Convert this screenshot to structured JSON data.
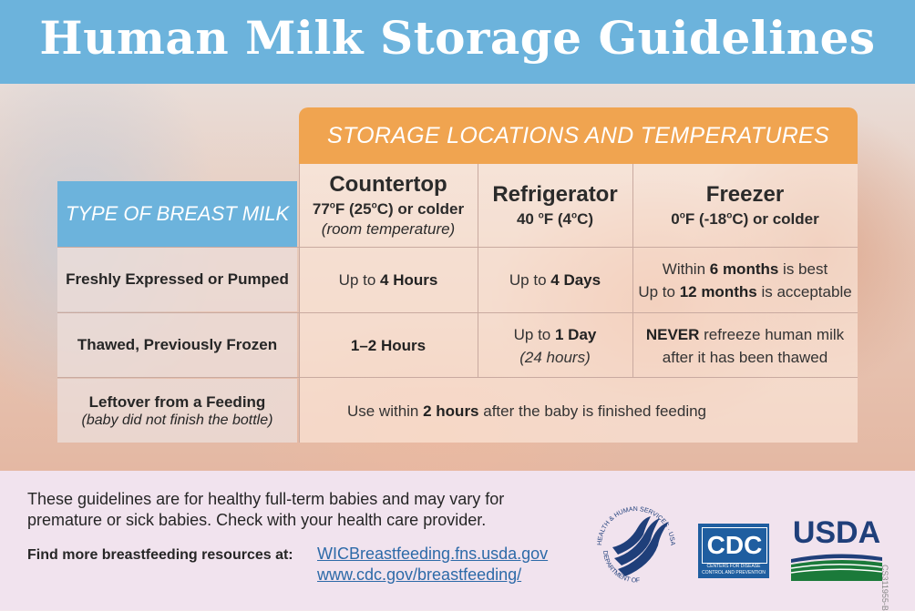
{
  "header": {
    "title": "Human Milk Storage Guidelines"
  },
  "table": {
    "locations_title": "STORAGE LOCATIONS AND TEMPERATURES",
    "type_header": "TYPE OF BREAST MILK",
    "columns": [
      {
        "name": "Countertop",
        "temp_a": "77",
        "temp_b": "F (25",
        "temp_c": "C) or colder",
        "note": "(room temperature)"
      },
      {
        "name": "Refrigerator",
        "temp_a": "40 ",
        "temp_b": "F (4",
        "temp_c": "C)"
      },
      {
        "name": "Freezer",
        "temp_a": "0",
        "temp_b": "F (-18",
        "temp_c": "C) or colder"
      }
    ],
    "degree_mark": "o",
    "rows": [
      {
        "label": "Freshly Expressed or Pumped"
      },
      {
        "label": "Thawed, Previously Frozen"
      },
      {
        "label": "Leftover from a Feeding",
        "note": "(baby did not finish the bottle)"
      }
    ],
    "cells": {
      "fresh_countertop": {
        "pre": "Up to ",
        "bold": "4 Hours"
      },
      "fresh_refrigerator": {
        "pre": "Up to ",
        "bold": "4 Days"
      },
      "fresh_freezer_line1": {
        "pre": "Within ",
        "bold": "6 months",
        "post": " is best"
      },
      "fresh_freezer_line2": {
        "pre": "Up to ",
        "bold": "12 months",
        "post": " is acceptable"
      },
      "thawed_countertop": {
        "bold": "1–2 Hours"
      },
      "thawed_refrigerator": {
        "pre": "Up to ",
        "bold": "1 Day",
        "note": "(24 hours)"
      },
      "thawed_freezer_line1": {
        "bold": "NEVER",
        "post": " refreeze human milk"
      },
      "thawed_freezer_line2": {
        "text": "after it has been thawed"
      },
      "leftover_all": {
        "pre": "Use within ",
        "bold": "2 hours",
        "post": " after the baby is finished feeding"
      }
    }
  },
  "footer": {
    "disclaimer": "These guidelines are for healthy full-term babies and may vary for premature or sick babies. Check with your health care provider.",
    "find_label": "Find more breastfeeding resources at:",
    "links": [
      "WICBreastfeeding.fns.usda.gov",
      "www.cdc.gov/breastfeeding/"
    ],
    "code": "CS311955-B"
  },
  "logos": {
    "hhs_top": "HEALTH & HUMAN SERVICES · USA",
    "hhs_bottom": "DEPARTMENT OF",
    "cdc_mark": "CDC",
    "cdc_line1": "CENTERS FOR DISEASE",
    "cdc_line2": "CONTROL AND PREVENTION",
    "usda": "USDA"
  },
  "colors": {
    "header_blue": "#6cb3dc",
    "locations_orange": "#f0a450",
    "link_blue": "#2d6aa8",
    "cdc_blue": "#1f5ea0",
    "usda_green": "#1b7a3a"
  }
}
